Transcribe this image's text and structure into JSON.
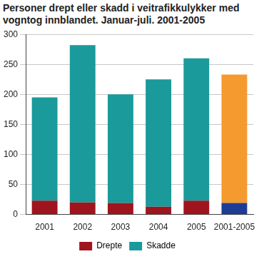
{
  "chart_data": {
    "type": "bar",
    "stacked": true,
    "title": "Personer drept eller skadd i veitrafikkulykker med vogntog innblandet. Januar-juli. 2001-2005",
    "categories": [
      "2001",
      "2002",
      "2003",
      "2004",
      "2005",
      "2001-2005"
    ],
    "series": [
      {
        "name": "Drepte",
        "color": "#a0141e",
        "colors": [
          "#a0141e",
          "#a0141e",
          "#a0141e",
          "#a0141e",
          "#a0141e",
          "#1e3c96"
        ],
        "values": [
          23,
          20,
          19,
          13,
          23,
          19
        ]
      },
      {
        "name": "Skadde",
        "color": "#1a9a9a",
        "colors": [
          "#1a9a9a",
          "#1a9a9a",
          "#1a9a9a",
          "#1a9a9a",
          "#1a9a9a",
          "#f59a2e"
        ],
        "values": [
          172,
          262,
          181,
          212,
          237,
          214
        ]
      }
    ],
    "ylim": [
      0,
      300
    ],
    "yticks": [
      0,
      50,
      100,
      150,
      200,
      250,
      300
    ],
    "grid": true,
    "legend": "bottom"
  }
}
